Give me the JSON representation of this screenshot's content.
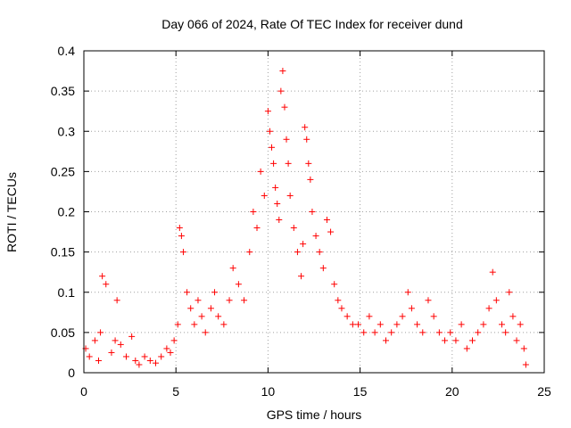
{
  "chart_data": {
    "type": "scatter",
    "title": "Day 066 of 2024, Rate Of TEC Index for receiver dund",
    "xlabel": "GPS time / hours",
    "ylabel": "ROTI / TECUs",
    "xlim": [
      0,
      25
    ],
    "ylim": [
      0,
      0.4
    ],
    "x_ticks": [
      "0",
      "5",
      "10",
      "15",
      "20",
      "25"
    ],
    "y_ticks": [
      "0",
      "0.05",
      "0.1",
      "0.15",
      "0.2",
      "0.25",
      "0.3",
      "0.35",
      "0.4"
    ],
    "grid": true,
    "marker": "plus",
    "point_color": "#ff0000",
    "series": [
      {
        "x": [
          0.1,
          0.3,
          0.6,
          0.8,
          0.9,
          1.0,
          1.2,
          1.5,
          1.7,
          1.8,
          2.0,
          2.3,
          2.6,
          2.8,
          3.0,
          3.3,
          3.6,
          3.9,
          4.2,
          4.5,
          4.7,
          4.9,
          5.1,
          5.2,
          5.3,
          5.4,
          5.6,
          5.8,
          6.0,
          6.2,
          6.4,
          6.6,
          6.9,
          7.1,
          7.3,
          7.6,
          7.9,
          8.1,
          8.4,
          8.7,
          9.0,
          9.2,
          9.4,
          9.6,
          9.8,
          10.0,
          10.1,
          10.2,
          10.3,
          10.4,
          10.5,
          10.6,
          10.7,
          10.8,
          10.9,
          11.0,
          11.1,
          11.2,
          11.4,
          11.6,
          11.8,
          11.9,
          12.0,
          12.1,
          12.2,
          12.3,
          12.4,
          12.6,
          12.8,
          13.0,
          13.2,
          13.4,
          13.6,
          13.8,
          14.0,
          14.3,
          14.6,
          14.9,
          15.2,
          15.5,
          15.8,
          16.1,
          16.4,
          16.7,
          17.0,
          17.3,
          17.6,
          17.8,
          18.1,
          18.4,
          18.7,
          19.0,
          19.3,
          19.6,
          19.9,
          20.2,
          20.5,
          20.8,
          21.1,
          21.4,
          21.7,
          22.0,
          22.2,
          22.4,
          22.7,
          22.9,
          23.1,
          23.3,
          23.5,
          23.7,
          23.9,
          24.0
        ],
        "y": [
          0.03,
          0.02,
          0.04,
          0.015,
          0.05,
          0.12,
          0.11,
          0.025,
          0.04,
          0.09,
          0.035,
          0.02,
          0.045,
          0.015,
          0.01,
          0.02,
          0.015,
          0.012,
          0.02,
          0.03,
          0.025,
          0.04,
          0.06,
          0.18,
          0.17,
          0.15,
          0.1,
          0.08,
          0.06,
          0.09,
          0.07,
          0.05,
          0.08,
          0.1,
          0.07,
          0.06,
          0.09,
          0.13,
          0.11,
          0.09,
          0.15,
          0.2,
          0.18,
          0.25,
          0.22,
          0.325,
          0.3,
          0.28,
          0.26,
          0.23,
          0.21,
          0.19,
          0.35,
          0.375,
          0.33,
          0.29,
          0.26,
          0.22,
          0.18,
          0.15,
          0.12,
          0.16,
          0.305,
          0.29,
          0.26,
          0.24,
          0.2,
          0.17,
          0.15,
          0.13,
          0.19,
          0.175,
          0.11,
          0.09,
          0.08,
          0.07,
          0.06,
          0.06,
          0.05,
          0.07,
          0.05,
          0.06,
          0.04,
          0.05,
          0.06,
          0.07,
          0.1,
          0.08,
          0.06,
          0.05,
          0.09,
          0.07,
          0.05,
          0.04,
          0.05,
          0.04,
          0.06,
          0.03,
          0.04,
          0.05,
          0.06,
          0.08,
          0.125,
          0.09,
          0.06,
          0.05,
          0.1,
          0.07,
          0.04,
          0.06,
          0.03,
          0.01
        ]
      }
    ]
  }
}
